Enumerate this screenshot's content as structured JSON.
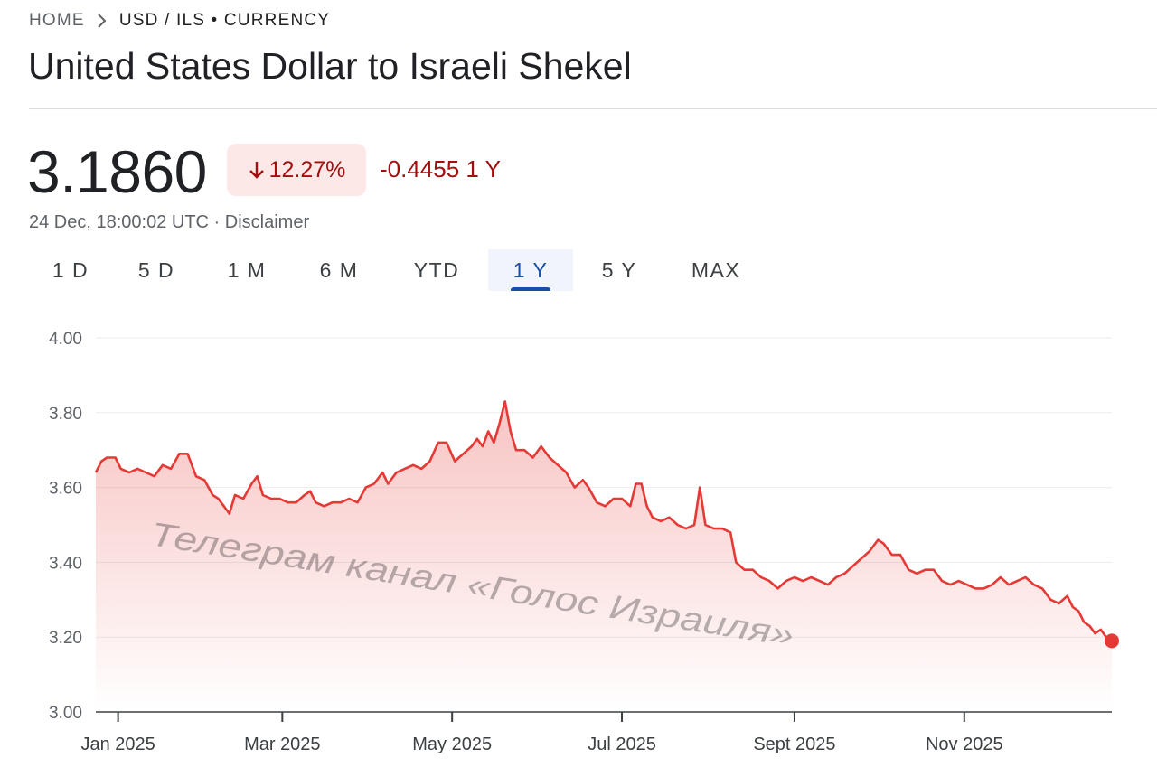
{
  "breadcrumb": {
    "home": "HOME",
    "current": "USD / ILS • CURRENCY"
  },
  "title": "United States Dollar to Israeli Shekel",
  "quote": {
    "price": "3.1860",
    "change_percent": "12.27%",
    "change_direction": "down",
    "change_absolute": "-0.4455 1 Y",
    "timestamp": "24 Dec, 18:00:02 UTC",
    "separator": " · ",
    "disclaimer": "Disclaimer"
  },
  "ranges": {
    "items": [
      "1 D",
      "5 D",
      "1 M",
      "6 M",
      "YTD",
      "1 Y",
      "5 Y",
      "MAX"
    ],
    "selected": "1 Y"
  },
  "colors": {
    "negative": "#a50e0e",
    "line": "#e53935",
    "badge_bg": "#fce8e6",
    "active_tab": "#174ea6"
  },
  "watermark": "Телеграм канал «Голос Израиля»",
  "chart_data": {
    "type": "line",
    "ylim": [
      3.0,
      4.0
    ],
    "yticks": [
      "4.00",
      "3.80",
      "3.60",
      "3.40",
      "3.20",
      "3.00"
    ],
    "xticks": [
      "Jan 2025",
      "Mar 2025",
      "May 2025",
      "Jul 2025",
      "Sept 2025",
      "Nov 2025"
    ],
    "xlim": [
      "2024-12-24",
      "2025-12-24"
    ],
    "fill": "gradient-under-line",
    "end_marker": true,
    "series": [
      {
        "name": "",
        "points": [
          [
            "2024-12-24",
            3.64
          ],
          [
            "2024-12-26",
            3.67
          ],
          [
            "2024-12-28",
            3.68
          ],
          [
            "2024-12-31",
            3.68
          ],
          [
            "2025-01-02",
            3.65
          ],
          [
            "2025-01-05",
            3.64
          ],
          [
            "2025-01-08",
            3.65
          ],
          [
            "2025-01-11",
            3.64
          ],
          [
            "2025-01-14",
            3.63
          ],
          [
            "2025-01-17",
            3.66
          ],
          [
            "2025-01-20",
            3.65
          ],
          [
            "2025-01-23",
            3.69
          ],
          [
            "2025-01-26",
            3.69
          ],
          [
            "2025-01-29",
            3.63
          ],
          [
            "2025-02-01",
            3.62
          ],
          [
            "2025-02-04",
            3.58
          ],
          [
            "2025-02-06",
            3.57
          ],
          [
            "2025-02-08",
            3.55
          ],
          [
            "2025-02-10",
            3.53
          ],
          [
            "2025-02-12",
            3.58
          ],
          [
            "2025-02-15",
            3.57
          ],
          [
            "2025-02-18",
            3.61
          ],
          [
            "2025-02-20",
            3.63
          ],
          [
            "2025-02-22",
            3.58
          ],
          [
            "2025-02-25",
            3.57
          ],
          [
            "2025-02-28",
            3.57
          ],
          [
            "2025-03-03",
            3.56
          ],
          [
            "2025-03-06",
            3.56
          ],
          [
            "2025-03-09",
            3.58
          ],
          [
            "2025-03-11",
            3.59
          ],
          [
            "2025-03-13",
            3.56
          ],
          [
            "2025-03-16",
            3.55
          ],
          [
            "2025-03-19",
            3.56
          ],
          [
            "2025-03-22",
            3.56
          ],
          [
            "2025-03-25",
            3.57
          ],
          [
            "2025-03-28",
            3.56
          ],
          [
            "2025-03-31",
            3.6
          ],
          [
            "2025-04-03",
            3.61
          ],
          [
            "2025-04-06",
            3.64
          ],
          [
            "2025-04-08",
            3.61
          ],
          [
            "2025-04-11",
            3.64
          ],
          [
            "2025-04-14",
            3.65
          ],
          [
            "2025-04-17",
            3.66
          ],
          [
            "2025-04-20",
            3.65
          ],
          [
            "2025-04-23",
            3.67
          ],
          [
            "2025-04-26",
            3.72
          ],
          [
            "2025-04-29",
            3.72
          ],
          [
            "2025-05-02",
            3.67
          ],
          [
            "2025-05-05",
            3.69
          ],
          [
            "2025-05-08",
            3.71
          ],
          [
            "2025-05-10",
            3.73
          ],
          [
            "2025-05-12",
            3.71
          ],
          [
            "2025-05-14",
            3.75
          ],
          [
            "2025-05-16",
            3.72
          ],
          [
            "2025-05-18",
            3.77
          ],
          [
            "2025-05-20",
            3.83
          ],
          [
            "2025-05-22",
            3.75
          ],
          [
            "2025-05-24",
            3.7
          ],
          [
            "2025-05-27",
            3.7
          ],
          [
            "2025-05-30",
            3.68
          ],
          [
            "2025-06-02",
            3.71
          ],
          [
            "2025-06-05",
            3.68
          ],
          [
            "2025-06-08",
            3.66
          ],
          [
            "2025-06-11",
            3.64
          ],
          [
            "2025-06-14",
            3.6
          ],
          [
            "2025-06-17",
            3.62
          ],
          [
            "2025-06-19",
            3.6
          ],
          [
            "2025-06-22",
            3.56
          ],
          [
            "2025-06-25",
            3.55
          ],
          [
            "2025-06-28",
            3.57
          ],
          [
            "2025-07-01",
            3.57
          ],
          [
            "2025-07-04",
            3.55
          ],
          [
            "2025-07-06",
            3.61
          ],
          [
            "2025-07-08",
            3.61
          ],
          [
            "2025-07-10",
            3.55
          ],
          [
            "2025-07-12",
            3.52
          ],
          [
            "2025-07-15",
            3.51
          ],
          [
            "2025-07-18",
            3.52
          ],
          [
            "2025-07-21",
            3.5
          ],
          [
            "2025-07-24",
            3.49
          ],
          [
            "2025-07-27",
            3.5
          ],
          [
            "2025-07-29",
            3.6
          ],
          [
            "2025-07-31",
            3.5
          ],
          [
            "2025-08-03",
            3.49
          ],
          [
            "2025-08-06",
            3.49
          ],
          [
            "2025-08-09",
            3.48
          ],
          [
            "2025-08-11",
            3.4
          ],
          [
            "2025-08-14",
            3.38
          ],
          [
            "2025-08-17",
            3.38
          ],
          [
            "2025-08-20",
            3.36
          ],
          [
            "2025-08-23",
            3.35
          ],
          [
            "2025-08-26",
            3.33
          ],
          [
            "2025-08-29",
            3.35
          ],
          [
            "2025-09-01",
            3.36
          ],
          [
            "2025-09-04",
            3.35
          ],
          [
            "2025-09-07",
            3.36
          ],
          [
            "2025-09-10",
            3.35
          ],
          [
            "2025-09-13",
            3.34
          ],
          [
            "2025-09-16",
            3.36
          ],
          [
            "2025-09-19",
            3.37
          ],
          [
            "2025-09-22",
            3.39
          ],
          [
            "2025-09-25",
            3.41
          ],
          [
            "2025-09-28",
            3.43
          ],
          [
            "2025-10-01",
            3.46
          ],
          [
            "2025-10-03",
            3.45
          ],
          [
            "2025-10-06",
            3.42
          ],
          [
            "2025-10-09",
            3.42
          ],
          [
            "2025-10-12",
            3.38
          ],
          [
            "2025-10-15",
            3.37
          ],
          [
            "2025-10-18",
            3.38
          ],
          [
            "2025-10-21",
            3.38
          ],
          [
            "2025-10-24",
            3.35
          ],
          [
            "2025-10-27",
            3.34
          ],
          [
            "2025-10-30",
            3.35
          ],
          [
            "2025-11-02",
            3.34
          ],
          [
            "2025-11-05",
            3.33
          ],
          [
            "2025-11-08",
            3.33
          ],
          [
            "2025-11-11",
            3.34
          ],
          [
            "2025-11-14",
            3.36
          ],
          [
            "2025-11-17",
            3.34
          ],
          [
            "2025-11-20",
            3.35
          ],
          [
            "2025-11-23",
            3.36
          ],
          [
            "2025-11-26",
            3.34
          ],
          [
            "2025-11-29",
            3.33
          ],
          [
            "2025-12-02",
            3.3
          ],
          [
            "2025-12-05",
            3.29
          ],
          [
            "2025-12-08",
            3.31
          ],
          [
            "2025-12-10",
            3.28
          ],
          [
            "2025-12-12",
            3.27
          ],
          [
            "2025-12-14",
            3.24
          ],
          [
            "2025-12-16",
            3.23
          ],
          [
            "2025-12-18",
            3.21
          ],
          [
            "2025-12-20",
            3.22
          ],
          [
            "2025-12-22",
            3.2
          ],
          [
            "2025-12-24",
            3.19
          ]
        ]
      }
    ]
  }
}
